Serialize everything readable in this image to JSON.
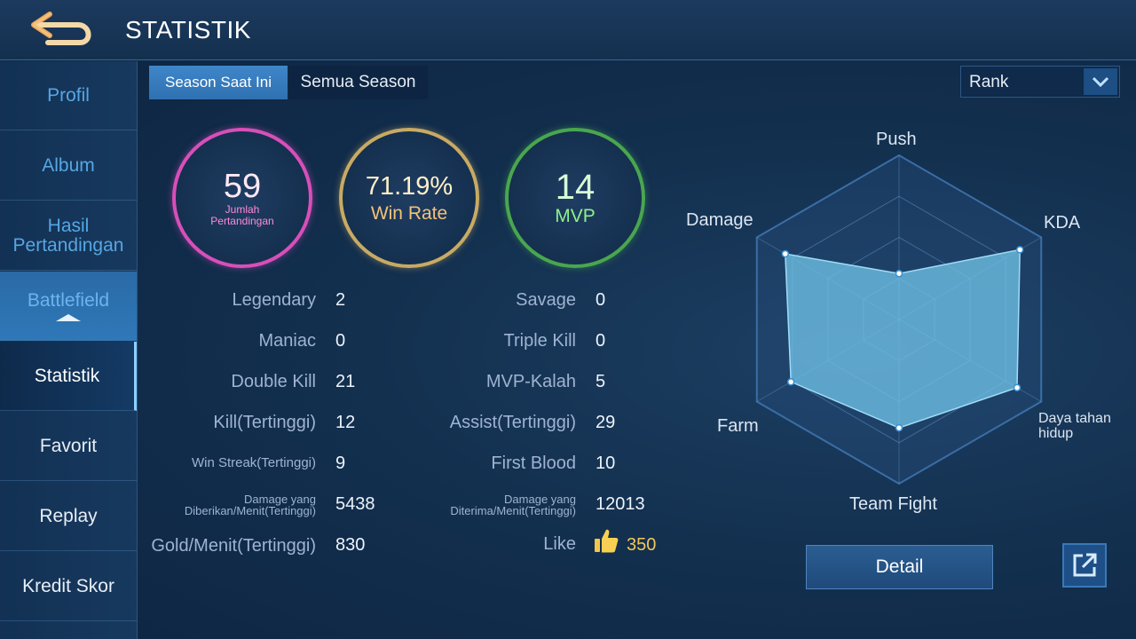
{
  "header": {
    "title": "STATISTIK",
    "back_icon": "back-arrow-icon"
  },
  "sidebar": {
    "items": [
      {
        "label": "Profil"
      },
      {
        "label": "Album"
      },
      {
        "label": "Hasil Pertandingan"
      },
      {
        "label": "Battlefield"
      },
      {
        "label": "Statistik"
      },
      {
        "label": "Favorit"
      },
      {
        "label": "Replay"
      },
      {
        "label": "Kredit Skor"
      }
    ]
  },
  "tabs": [
    {
      "label": "Season Saat Ini",
      "active": true
    },
    {
      "label": "Semua Season",
      "active": false
    }
  ],
  "dropdown": {
    "selected": "Rank"
  },
  "summary": {
    "matches": {
      "value": "59",
      "label": "Jumlah Pertandingan",
      "color": "#d84fb9"
    },
    "winrate": {
      "value": "71.19%",
      "label": "Win Rate",
      "color": "#c9aa63"
    },
    "mvp": {
      "value": "14",
      "label": "MVP",
      "color": "#49a64e"
    }
  },
  "stats_left": [
    {
      "label": "Legendary",
      "value": "2"
    },
    {
      "label": "Maniac",
      "value": "0"
    },
    {
      "label": "Double Kill",
      "value": "21"
    },
    {
      "label": "Kill(Tertinggi)",
      "value": "12"
    },
    {
      "label": "Win Streak(Tertinggi)",
      "value": "9"
    },
    {
      "label": "Damage yang Diberikan/Menit(Tertinggi)",
      "value": "5438"
    },
    {
      "label": "Gold/Menit(Tertinggi)",
      "value": "830"
    }
  ],
  "stats_right": [
    {
      "label": "Savage",
      "value": "0"
    },
    {
      "label": "Triple Kill",
      "value": "0"
    },
    {
      "label": "MVP-Kalah",
      "value": "5"
    },
    {
      "label": "Assist(Tertinggi)",
      "value": "29"
    },
    {
      "label": "First Blood",
      "value": "10"
    },
    {
      "label": "Damage yang Diterima/Menit(Tertinggi)",
      "value": "12013"
    },
    {
      "label": "Like",
      "value": "350"
    }
  ],
  "radar": {
    "axes": [
      "Push",
      "KDA",
      "Daya tahan hidup",
      "Team Fight",
      "Farm",
      "Damage"
    ],
    "values": [
      0.28,
      0.85,
      0.83,
      0.66,
      0.76,
      0.8
    ],
    "fill_color": "#6fc0e6"
  },
  "buttons": {
    "detail": "Detail",
    "share_icon": "share-external-icon"
  }
}
